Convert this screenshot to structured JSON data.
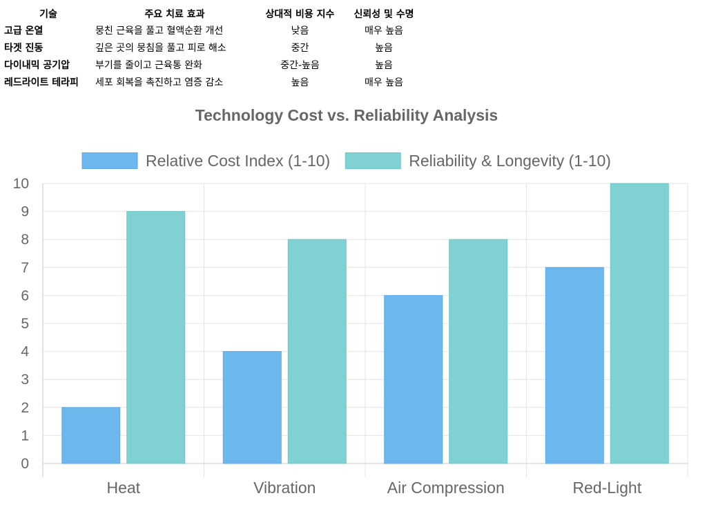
{
  "table": {
    "headers": [
      "기술",
      "주요 치료 효과",
      "상대적 비용 지수",
      "신뢰성 및 수명"
    ],
    "rows": [
      [
        "고급 온열",
        "뭉친 근육을 풀고 혈액순환 개선",
        "낮음",
        "매우 높음"
      ],
      [
        "타겟 진동",
        "깊은 곳의 뭉침을 풀고 피로 해소",
        "중간",
        "높음"
      ],
      [
        "다이내믹 공기압",
        "부기를 줄이고 근육통 완화",
        "중간-높음",
        "높음"
      ],
      [
        "레드라이트 테라피",
        "세포 회복을 촉진하고 염증 감소",
        "높음",
        "매우 높음"
      ]
    ]
  },
  "chart_data": {
    "type": "bar",
    "title": "Technology Cost vs. Reliability Analysis",
    "categories": [
      "Heat",
      "Vibration",
      "Air Compression",
      "Red-Light"
    ],
    "series": [
      {
        "name": "Relative Cost Index (1-10)",
        "values": [
          2,
          4,
          6,
          7
        ],
        "color": "#6cb7ee",
        "border": "#5aa9e6"
      },
      {
        "name": "Reliability & Longevity (1-10)",
        "values": [
          9,
          8,
          8,
          10
        ],
        "color": "#80d1d1",
        "border": "#6cc7c7"
      }
    ],
    "ylim": [
      0,
      10
    ],
    "yticks": [
      "0",
      "1",
      "2",
      "3",
      "4",
      "5",
      "6",
      "7",
      "8",
      "9",
      "10"
    ],
    "grid": true,
    "legend": "top"
  }
}
